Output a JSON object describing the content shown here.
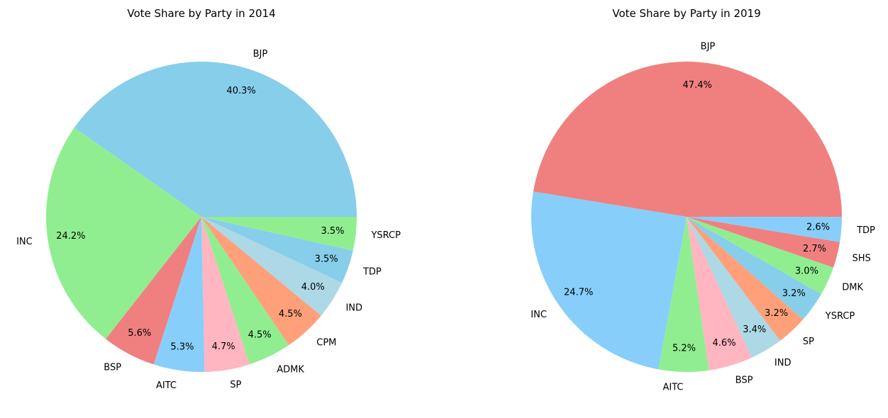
{
  "chart_data": [
    {
      "type": "pie",
      "title": "Vote Share by Party in 2014",
      "labels": [
        "BJP",
        "INC",
        "BSP",
        "AITC",
        "SP",
        "ADMK",
        "CPM",
        "IND",
        "TDP",
        "YSRCP"
      ],
      "values": [
        40.3,
        24.2,
        5.6,
        5.3,
        4.7,
        4.5,
        4.5,
        4.0,
        3.5,
        3.5
      ],
      "value_labels": [
        "40.3%",
        "24.2%",
        "5.6%",
        "5.3%",
        "4.7%",
        "4.5%",
        "4.5%",
        "4.0%",
        "3.5%",
        "3.5%"
      ],
      "colors": [
        "#87CEEB",
        "#90EE90",
        "#F08080",
        "#87CEFA",
        "#FFB6C1",
        "#90EE90",
        "#FFA07A",
        "#ADD8E6",
        "#87CEEB",
        "#90EE90"
      ],
      "start_angle_deg": 0,
      "direction": "counterclockwise"
    },
    {
      "type": "pie",
      "title": "Vote Share by Party in 2019",
      "labels": [
        "BJP",
        "INC",
        "AITC",
        "BSP",
        "IND",
        "SP",
        "YSRCP",
        "DMK",
        "SHS",
        "TDP"
      ],
      "values": [
        47.4,
        24.7,
        5.2,
        4.6,
        3.4,
        3.2,
        3.2,
        3.0,
        2.7,
        2.6
      ],
      "value_labels": [
        "47.4%",
        "24.7%",
        "5.2%",
        "4.6%",
        "3.4%",
        "3.2%",
        "3.2%",
        "3.0%",
        "2.7%",
        "2.6%"
      ],
      "colors": [
        "#F08080",
        "#87CEFA",
        "#90EE90",
        "#FFB6C1",
        "#ADD8E6",
        "#FFA07A",
        "#87CEEB",
        "#90EE90",
        "#F08080",
        "#87CEFA"
      ],
      "start_angle_deg": 0,
      "direction": "counterclockwise"
    }
  ]
}
